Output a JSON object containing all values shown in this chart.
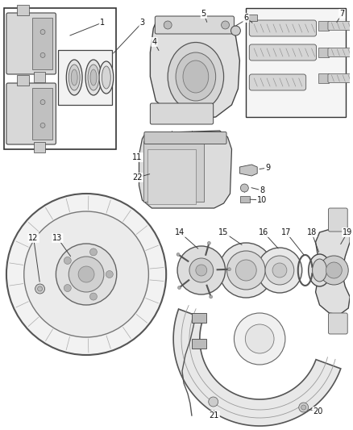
{
  "bg_color": "#ffffff",
  "fig_width": 4.38,
  "fig_height": 5.33,
  "dpi": 100,
  "font_size": 7.0,
  "line_color": "#444444"
}
